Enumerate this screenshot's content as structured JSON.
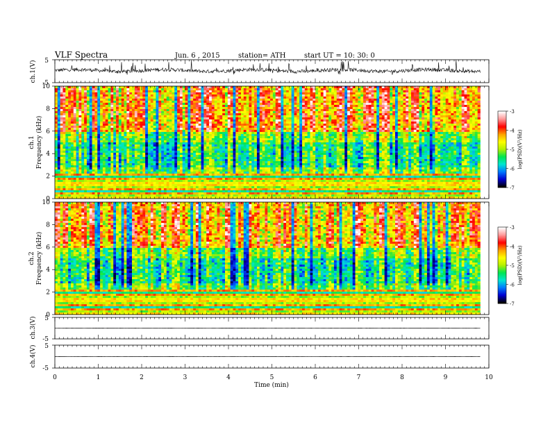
{
  "header": {
    "title": "VLF  Spectra",
    "date": "Jun. 6  , 2015",
    "station": "station= ATH",
    "start": "start  UT =   10: 30: 0"
  },
  "colors": {
    "trace": "#000000",
    "frame": "#000000",
    "colormap": [
      "#000000",
      "#0000d0",
      "#0078ff",
      "#00e6d2",
      "#00e650",
      "#b4f000",
      "#ffff00",
      "#ffa000",
      "#ff0000",
      "#ff9696",
      "#ffffff"
    ]
  },
  "chart_data": [
    {
      "type": "line",
      "name": "ch1-waveform",
      "ylabel": "ch.1(V)",
      "ylim": [
        -5,
        5
      ],
      "y_tick_labels": [
        "5",
        "-5"
      ],
      "x": [
        0,
        9.8
      ],
      "baseline": 0.3,
      "xlim": [
        0,
        10
      ]
    },
    {
      "type": "heatmap",
      "name": "ch1-spectrogram",
      "ylabel": "ch.1\nFrequency  (kHz)",
      "ylim": [
        0,
        10
      ],
      "y_tick_labels": [
        "0",
        "2",
        "4",
        "6",
        "8",
        "10"
      ],
      "x_end": 9.8,
      "xlim": [
        0,
        10
      ],
      "colorbar": {
        "label": "log(PSD)(V²/Hz)",
        "range": [
          -7,
          -3
        ],
        "tick_labels": [
          "-3",
          "-4",
          "-5",
          "-6",
          "-7"
        ]
      }
    },
    {
      "type": "heatmap",
      "name": "ch2-spectrogram",
      "ylabel": "ch.2\nFrequency  (kHz)",
      "ylim": [
        0,
        10
      ],
      "y_tick_labels": [
        "0",
        "2",
        "4",
        "6",
        "8",
        "10"
      ],
      "x_end": 9.8,
      "xlim": [
        0,
        10
      ],
      "colorbar": {
        "label": "log(PSD)(V²/Hz)",
        "range": [
          -7,
          -3
        ],
        "tick_labels": [
          "-3",
          "-4",
          "-5",
          "-6",
          "-7"
        ]
      }
    },
    {
      "type": "line",
      "name": "ch3-waveform",
      "ylabel": "ch.3(V)",
      "ylim": [
        -5,
        5
      ],
      "y_tick_labels": [
        "5",
        "-5"
      ],
      "x": [
        0,
        9.8
      ],
      "baseline": 0,
      "xlim": [
        0,
        10
      ]
    },
    {
      "type": "line",
      "name": "ch4-waveform",
      "ylabel": "ch.4(V)",
      "ylim": [
        -5,
        5
      ],
      "y_tick_labels": [
        "5",
        "-5"
      ],
      "x": [
        0,
        9.8
      ],
      "baseline": 0,
      "xlim": [
        0,
        10
      ]
    }
  ],
  "x_axis": {
    "label": "Time  (min)",
    "range": [
      0,
      10
    ],
    "tick_labels": [
      "0",
      "1",
      "2",
      "3",
      "4",
      "5",
      "6",
      "7",
      "8",
      "9",
      "10"
    ]
  }
}
